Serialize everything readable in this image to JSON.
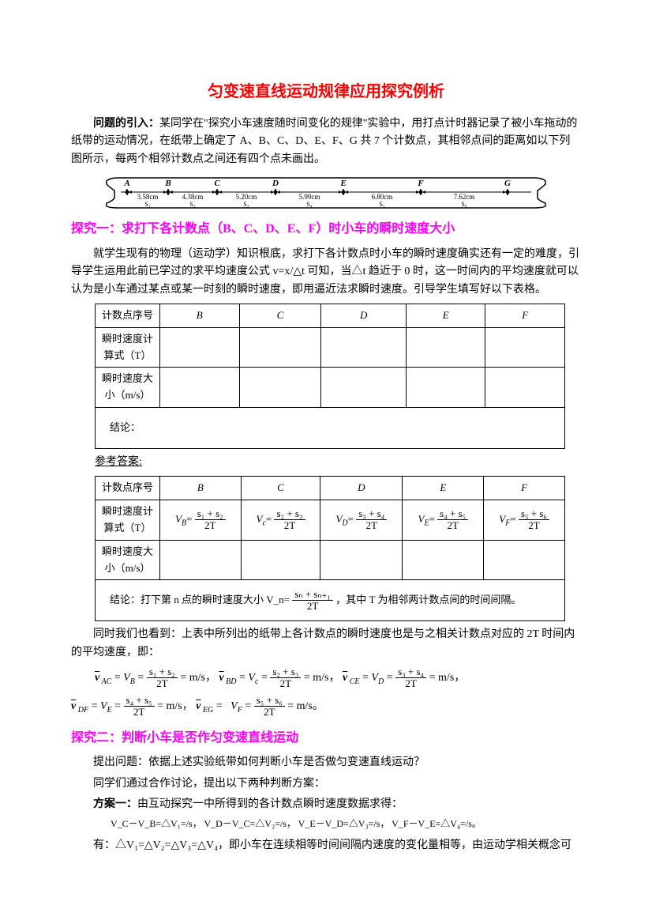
{
  "title": "匀变速直线运动规律应用探究例析",
  "intro": {
    "label": "问题的引入：",
    "text": "某同学在\"探究小车速度随时间变化的规律\"实验中，用打点计时器记录了被小车拖动的纸带的运动情况，在纸带上确定了 A、B、C、D、E、F、G 共 7 个计数点，其相邻点间的距离如以下列图所示，每两个相邻计数点之间还有四个点未画出。"
  },
  "tape": {
    "points": [
      "A",
      "B",
      "C",
      "D",
      "E",
      "F",
      "G"
    ],
    "segments": [
      "3.58cm",
      "4.38cm",
      "5.20cm",
      "5.99cm",
      "6.80cm",
      "7.62cm"
    ],
    "seg_labels": [
      "S₁",
      "S₂",
      "S₃",
      "S₄",
      "S₅",
      "S₆"
    ]
  },
  "section1": {
    "title": "探究一：求打下各计数点（B、C、D、E、F）时小车的瞬时速度大小",
    "para": "就学生现有的物理（运动学）知识根底，求打下各计数点时小车的瞬时速度确实还有一定的难度，引导学生运用此前已学过的求平均速度公式 v=x/△t 可知，当△t 趋近于 0 时，这一时间内的平均速度就可以认为是小车通过某点或某一时刻的瞬时速度，即用逼近法求瞬时速度。引导学生填写好以下表格。"
  },
  "table1": {
    "headers": [
      "计数点序号",
      "B",
      "C",
      "D",
      "E",
      "F"
    ],
    "row1_label": "瞬时速度计算式（T）",
    "row2_label": "瞬时速度大小（m/s）",
    "conclusion_label": "结论："
  },
  "answer_label": "参考答案:",
  "table2": {
    "headers": [
      "计数点序号",
      "B",
      "C",
      "D",
      "E",
      "F"
    ],
    "row1_label": "瞬时速度计算式（T）",
    "formulas": {
      "B": {
        "v": "V_B=",
        "num": "s₁ + s₂",
        "den": "2T"
      },
      "C": {
        "v": "V_c=",
        "num": "s₂ + s₃",
        "den": "2T"
      },
      "D": {
        "v": "V_D=",
        "num": "s₃ + s₄",
        "den": "2T"
      },
      "E": {
        "v": "V_E=",
        "num": "s₄ + s₅",
        "den": "2T"
      },
      "F": {
        "v": "V_F=",
        "num": "s₅ + s₆",
        "den": "2T"
      }
    },
    "row2_label": "瞬时速度大小（m/s）",
    "conclusion": "结论：打下第 n 点的瞬时速度大小 V_n=",
    "conclusion_num": "sₙ + sₙ₊₁",
    "conclusion_den": "2T",
    "conclusion_tail": "，其中 T 为相邻两计数点间的时间间隔。"
  },
  "para2": "同时我们也看到：上表中所列出的纸带上各计数点的瞬时速度也是与之相关计数点对应的 2T 时间内的平均速度，即：",
  "formulas_line": {
    "ac": {
      "label": "v̄_AC = V_B =",
      "num": "s₁ + s₂",
      "den": "2T",
      "tail": "= m/s，"
    },
    "bd": {
      "label": "v̄_BD = V_c =",
      "num": "s₂ + s₃",
      "den": "2T",
      "tail": "= m/s，"
    },
    "ce": {
      "label": "v̄_CE = V_D =",
      "num": "s₃ + s₄",
      "den": "2T",
      "tail": "= m/s，"
    },
    "df": {
      "label": "v̄_DF = V_E =",
      "num": "s₄ + s₅",
      "den": "2T",
      "tail": "= m/s，"
    },
    "eg": {
      "label": "v̄_EG =   V_F =",
      "num": "s₅ + s₆",
      "den": "2T",
      "tail": "= m/s。"
    }
  },
  "section2": {
    "title": "探究二：判断小车是否作匀变速直线运动",
    "q": "提出问题：依据上述实验纸带如何判断小车是否做匀变速直线运动？",
    "discuss": "同学们通过合作讨论，提出以下两种判断方案：",
    "plan1_label": "方案一：",
    "plan1_text": "由互动探究一中所得到的各计数点瞬时速度数据求得：",
    "deltas": "V_C－V_B=△V₁=/s，  V_D－V_C=△V₂=/s，  V_E－V_D=△V₃=/s，  V_F－V_E=△V₄=/s。",
    "conclusion_final": "有：△V₁=△V₂=△V₃=△V₄，即小车在连续相等时间间隔内速度的变化量相等，由运动学相关概念可"
  }
}
